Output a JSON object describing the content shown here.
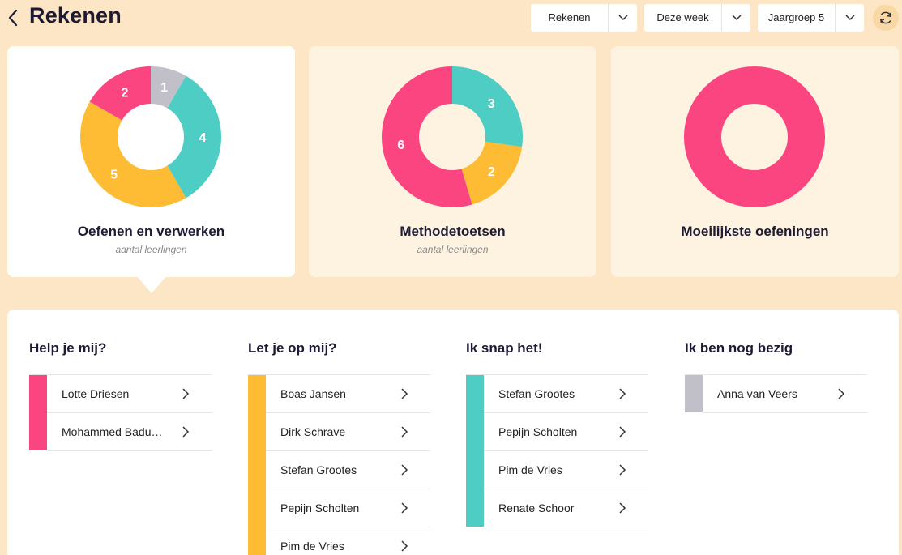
{
  "header": {
    "title": "Rekenen",
    "filters": [
      {
        "label": "Rekenen"
      },
      {
        "label": "Deze week"
      },
      {
        "label": "Jaargroep 5"
      }
    ]
  },
  "colors": {
    "pink": "#fb4580",
    "yellow": "#fdbc33",
    "teal": "#4ecdc4",
    "grey": "#c1c0c9"
  },
  "cards": [
    {
      "title": "Oefenen en verwerken",
      "subtitle": "aantal leerlingen",
      "active": true,
      "chart_data": {
        "type": "pie",
        "title": "Oefenen en verwerken",
        "subtitle": "aantal leerlingen",
        "slices": [
          {
            "value": 1,
            "color": "#c1c0c9"
          },
          {
            "value": 4,
            "color": "#4ecdc4"
          },
          {
            "value": 5,
            "color": "#fdbc33"
          },
          {
            "value": 2,
            "color": "#fb4580"
          }
        ]
      }
    },
    {
      "title": "Methodetoetsen",
      "subtitle": "aantal leerlingen",
      "active": false,
      "chart_data": {
        "type": "pie",
        "title": "Methodetoetsen",
        "subtitle": "aantal leerlingen",
        "slices": [
          {
            "value": 3,
            "color": "#4ecdc4"
          },
          {
            "value": 2,
            "color": "#fdbc33"
          },
          {
            "value": 6,
            "color": "#fb4580"
          }
        ]
      }
    },
    {
      "title": "Moeilijkste oefeningen",
      "subtitle": "",
      "active": false,
      "chart_data": {
        "type": "pie",
        "title": "Moeilijkste oefeningen",
        "slices": [
          {
            "value": 1,
            "color": "#fb4580",
            "label": ""
          }
        ]
      }
    }
  ],
  "groups": [
    {
      "title": "Help je mij?",
      "color": "#fb4580",
      "students": [
        "Lotte Driesen",
        "Mohammed Baduhadi"
      ]
    },
    {
      "title": "Let je op mij?",
      "color": "#fdbc33",
      "students": [
        "Boas Jansen",
        "Dirk Schrave",
        "Stefan Grootes",
        "Pepijn Scholten",
        "Pim de Vries"
      ]
    },
    {
      "title": "Ik snap het!",
      "color": "#4ecdc4",
      "students": [
        "Stefan Grootes",
        "Pepijn Scholten",
        "Pim de Vries",
        "Renate Schoor"
      ]
    },
    {
      "title": "Ik ben nog bezig",
      "color": "#c1c0c9",
      "students": [
        "Anna van Veers"
      ]
    }
  ]
}
